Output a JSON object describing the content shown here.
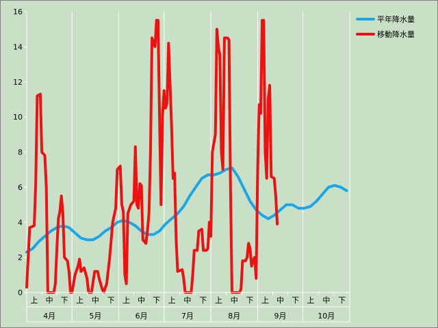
{
  "chart_data": {
    "type": "line",
    "title": "",
    "xlabel": "",
    "ylabel": "",
    "ylim": [
      0,
      16
    ],
    "yticks": [
      0,
      2,
      4,
      6,
      8,
      10,
      12,
      14,
      16
    ],
    "grid": "vertical-month-separators",
    "legend_position": "top-right",
    "months": [
      "4月",
      "5月",
      "6月",
      "7月",
      "8月",
      "9月",
      "10月"
    ],
    "dekads": [
      "上",
      "中",
      "下"
    ],
    "x_unit": "day index from April 1 (0–213)",
    "series": [
      {
        "name": "平年降水量",
        "color": "#1aa7e8",
        "points": [
          [
            0,
            2.3
          ],
          [
            4,
            2.5
          ],
          [
            8,
            2.9
          ],
          [
            12,
            3.2
          ],
          [
            16,
            3.5
          ],
          [
            20,
            3.7
          ],
          [
            24,
            3.8
          ],
          [
            28,
            3.7
          ],
          [
            32,
            3.4
          ],
          [
            36,
            3.1
          ],
          [
            40,
            3.0
          ],
          [
            44,
            3.0
          ],
          [
            48,
            3.2
          ],
          [
            52,
            3.5
          ],
          [
            56,
            3.7
          ],
          [
            60,
            4.0
          ],
          [
            64,
            4.1
          ],
          [
            68,
            4.0
          ],
          [
            72,
            3.8
          ],
          [
            76,
            3.5
          ],
          [
            80,
            3.3
          ],
          [
            84,
            3.3
          ],
          [
            88,
            3.5
          ],
          [
            92,
            3.9
          ],
          [
            96,
            4.2
          ],
          [
            100,
            4.5
          ],
          [
            104,
            4.9
          ],
          [
            108,
            5.5
          ],
          [
            112,
            6.0
          ],
          [
            116,
            6.5
          ],
          [
            120,
            6.7
          ],
          [
            124,
            6.7
          ],
          [
            128,
            6.8
          ],
          [
            132,
            7.0
          ],
          [
            136,
            7.1
          ],
          [
            140,
            6.6
          ],
          [
            144,
            5.9
          ],
          [
            148,
            5.2
          ],
          [
            152,
            4.7
          ],
          [
            156,
            4.4
          ],
          [
            160,
            4.2
          ],
          [
            164,
            4.4
          ],
          [
            168,
            4.7
          ],
          [
            172,
            5.0
          ],
          [
            176,
            5.0
          ],
          [
            180,
            4.8
          ],
          [
            184,
            4.8
          ],
          [
            188,
            4.9
          ],
          [
            192,
            5.2
          ],
          [
            196,
            5.6
          ],
          [
            200,
            6.0
          ],
          [
            204,
            6.1
          ],
          [
            208,
            6.0
          ],
          [
            212,
            5.8
          ]
        ]
      },
      {
        "name": "移動降水量",
        "color": "#ee1111",
        "points": [
          [
            0,
            0.3
          ],
          [
            2,
            3.7
          ],
          [
            5,
            3.8
          ],
          [
            6,
            6.2
          ],
          [
            7,
            11.2
          ],
          [
            9,
            11.3
          ],
          [
            10,
            8.0
          ],
          [
            12,
            7.8
          ],
          [
            13,
            6.0
          ],
          [
            14,
            0
          ],
          [
            18,
            0
          ],
          [
            19,
            0.5
          ],
          [
            20,
            2.5
          ],
          [
            21,
            4.2
          ],
          [
            22,
            4.6
          ],
          [
            23,
            5.5
          ],
          [
            24,
            4.5
          ],
          [
            25,
            2.0
          ],
          [
            27,
            1.8
          ],
          [
            28,
            1.2
          ],
          [
            29,
            0
          ],
          [
            30,
            0
          ],
          [
            32,
            1.0
          ],
          [
            34,
            1.5
          ],
          [
            35,
            1.9
          ],
          [
            36,
            1.2
          ],
          [
            38,
            1.4
          ],
          [
            40,
            0.8
          ],
          [
            41,
            0
          ],
          [
            43,
            0
          ],
          [
            44,
            0.6
          ],
          [
            45,
            1.2
          ],
          [
            47,
            1.2
          ],
          [
            48,
            0.8
          ],
          [
            50,
            0.2
          ],
          [
            51,
            0
          ],
          [
            53,
            0.5
          ],
          [
            55,
            2.0
          ],
          [
            57,
            4.0
          ],
          [
            59,
            4.8
          ],
          [
            60,
            7.0
          ],
          [
            62,
            7.2
          ],
          [
            63,
            5.0
          ],
          [
            64,
            4.6
          ],
          [
            65,
            1.0
          ],
          [
            66,
            0.5
          ],
          [
            67,
            4.5
          ],
          [
            69,
            5.0
          ],
          [
            71,
            5.2
          ],
          [
            72,
            8.3
          ],
          [
            73,
            5.0
          ],
          [
            74,
            4.8
          ],
          [
            75,
            6.2
          ],
          [
            76,
            6.1
          ],
          [
            77,
            3.0
          ],
          [
            79,
            2.8
          ],
          [
            80,
            3.5
          ],
          [
            81,
            4.5
          ],
          [
            82,
            8.0
          ],
          [
            83,
            14.5
          ],
          [
            85,
            14.0
          ],
          [
            86,
            15.5
          ],
          [
            87,
            15.5
          ],
          [
            88,
            10.0
          ],
          [
            89,
            5.0
          ],
          [
            90,
            10.0
          ],
          [
            91,
            11.5
          ],
          [
            92,
            10.5
          ],
          [
            93,
            10.8
          ],
          [
            94,
            14.2
          ],
          [
            96,
            9.5
          ],
          [
            97,
            6.5
          ],
          [
            98,
            6.8
          ],
          [
            99,
            3.0
          ],
          [
            100,
            1.2
          ],
          [
            103,
            1.3
          ],
          [
            104,
            0.8
          ],
          [
            105,
            0
          ],
          [
            109,
            0
          ],
          [
            110,
            1.0
          ],
          [
            111,
            2.4
          ],
          [
            113,
            2.4
          ],
          [
            114,
            3.5
          ],
          [
            116,
            3.6
          ],
          [
            117,
            2.4
          ],
          [
            119,
            2.4
          ],
          [
            120,
            2.5
          ],
          [
            121,
            4.0
          ],
          [
            122,
            3.2
          ],
          [
            123,
            8.0
          ],
          [
            125,
            9.0
          ],
          [
            126,
            15.0
          ],
          [
            127,
            14.0
          ],
          [
            128,
            13.5
          ],
          [
            129,
            8.0
          ],
          [
            130,
            7.0
          ],
          [
            131,
            14.5
          ],
          [
            133,
            14.5
          ],
          [
            134,
            14.4
          ],
          [
            135,
            6.0
          ],
          [
            136,
            0
          ],
          [
            141,
            0
          ],
          [
            142,
            0.2
          ],
          [
            143,
            1.8
          ],
          [
            145,
            1.8
          ],
          [
            146,
            2.0
          ],
          [
            147,
            2.8
          ],
          [
            148,
            2.5
          ],
          [
            149,
            1.5
          ],
          [
            150,
            1.8
          ],
          [
            151,
            2.0
          ],
          [
            152,
            0.8
          ],
          [
            153,
            7.0
          ],
          [
            154,
            10.7
          ],
          [
            155,
            10.2
          ],
          [
            156,
            15.5
          ],
          [
            157,
            15.5
          ],
          [
            158,
            8.0
          ],
          [
            159,
            6.5
          ],
          [
            160,
            11.0
          ],
          [
            161,
            11.8
          ],
          [
            162,
            6.6
          ],
          [
            164,
            6.5
          ],
          [
            165,
            5.5
          ],
          [
            166,
            3.9
          ]
        ]
      }
    ]
  }
}
